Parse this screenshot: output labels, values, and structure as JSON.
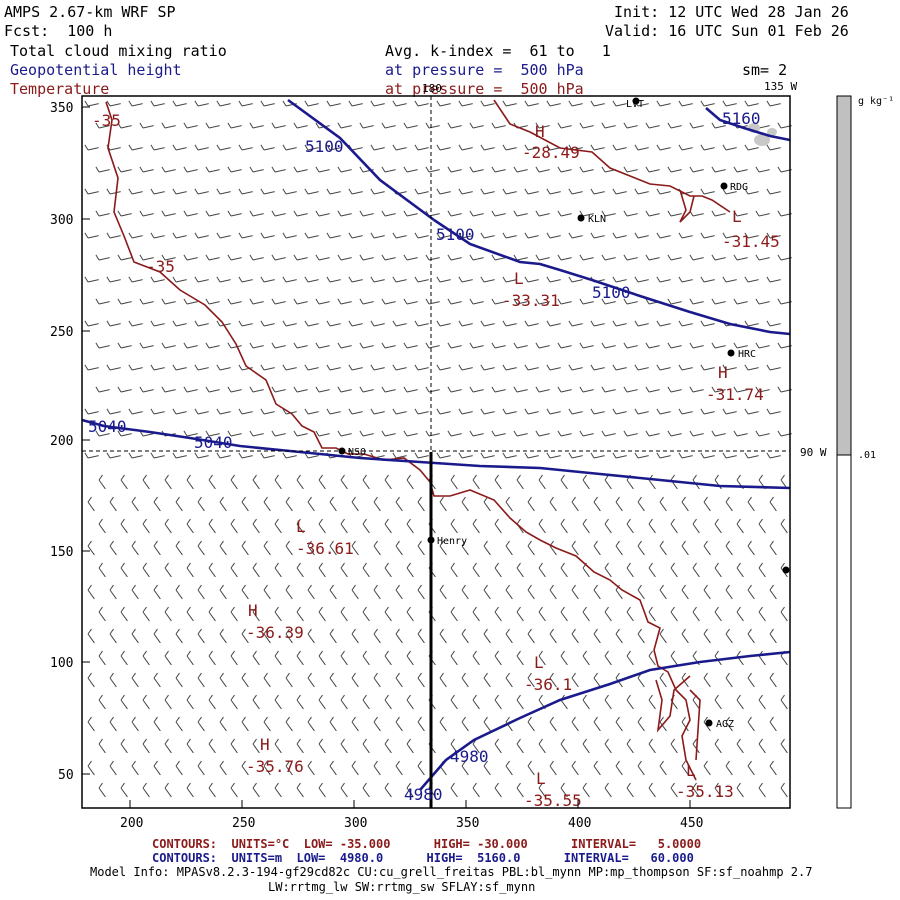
{
  "header": {
    "model": "AMPS 2.67-km WRF SP",
    "init": "Init: 12 UTC Wed 28 Jan 26",
    "fcst": "Fcst:  100 h",
    "valid": "Valid: 16 UTC Sun 01 Feb 26",
    "field1": "Total cloud mixing ratio",
    "field2": "Geopotential height",
    "field3": "Temperature",
    "avg": "Avg. k-index =  61 to   1",
    "pressure1": "at pressure =  500 hPa",
    "pressure2": "at pressure =  500 hPa",
    "sm": "sm= 2"
  },
  "map": {
    "lon_180": "180",
    "lon_135": "135 W",
    "lon_90": "90 W",
    "x_ticks": [
      "200",
      "250",
      "300",
      "350",
      "400",
      "450"
    ],
    "y_ticks": [
      "350",
      "300",
      "250",
      "200",
      "150",
      "100",
      "50"
    ],
    "stations": [
      "RDG",
      "KLN",
      "HRC",
      "NSO",
      "Henry",
      "AGZ",
      "LVT"
    ],
    "height_labels": [
      "5100",
      "5100",
      "5100",
      "5160",
      "5040",
      "5040",
      "4980",
      "4980"
    ],
    "temp_contour_labels": [
      "-35",
      "-35"
    ],
    "highs_lows": [
      {
        "letter": "H",
        "value": "-28.49"
      },
      {
        "letter": "L",
        "value": "-31.45"
      },
      {
        "letter": "L",
        "value": "-33.31"
      },
      {
        "letter": "H",
        "value": "-31.74"
      },
      {
        "letter": "L",
        "value": "-36.61"
      },
      {
        "letter": "H",
        "value": "-36.39"
      },
      {
        "letter": "L",
        "value": "-36.1"
      },
      {
        "letter": "H",
        "value": "-35.76"
      },
      {
        "letter": "L",
        "value": "-35.55"
      },
      {
        "letter": "L",
        "value": "-35.13"
      }
    ]
  },
  "colorbar": {
    "units": "g kg⁻¹",
    "value": ".01"
  },
  "footer": {
    "temp_contours": "CONTOURS:  UNITS=°C  LOW= -35.000      HIGH= -30.000      INTERVAL=   5.0000",
    "hgt_contours": "CONTOURS:  UNITS=m  LOW=  4980.0      HIGH=  5160.0      INTERVAL=   60.000",
    "model_info": "Model Info: MPASv8.2.3-194-gf29cd82c CU:cu_grell_freitas PBL:bl_mynn MP:mp_thompson SF:sf_noahmp 2.7",
    "model_info2": "LW:rrtmg_lw SW:rrtmg_sw SFLAY:sf_mynn"
  },
  "colors": {
    "height": "#1a1a8c",
    "temperature": "#8b1a1a",
    "cloud": "#c0c0c0"
  }
}
